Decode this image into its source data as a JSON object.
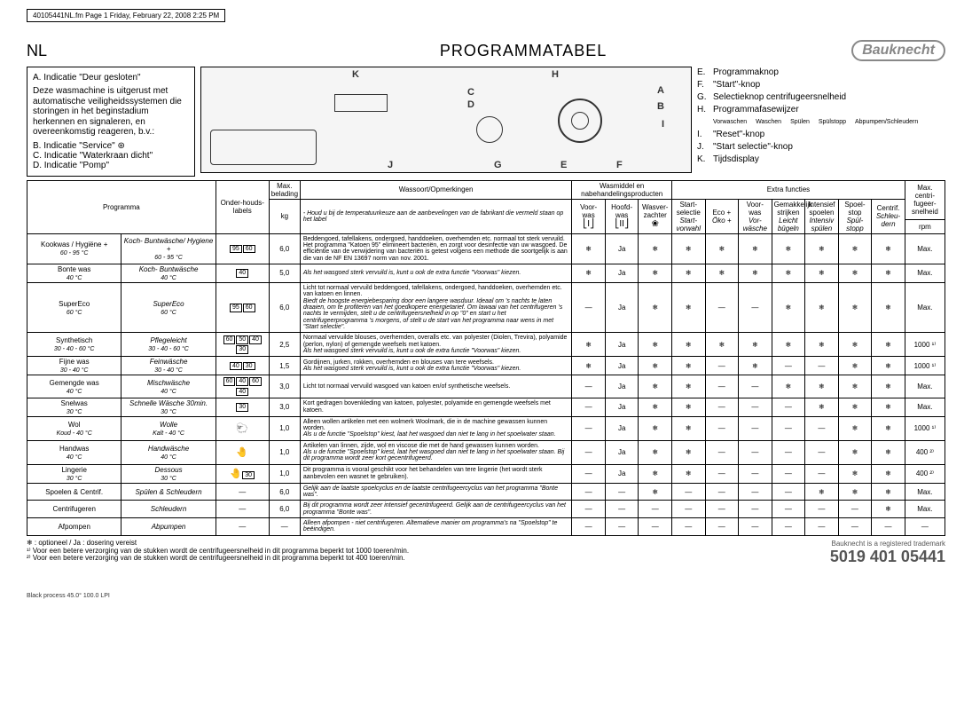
{
  "frame_header": "40105441NL.fm  Page 1  Friday, February 22, 2008  2:25 PM",
  "lang": "NL",
  "title": "PROGRAMMATABEL",
  "logo": "Bauknecht",
  "left": {
    "a": "A. Indicatie \"Deur gesloten\"",
    "block": "Deze wasmachine is uitgerust met automatische veiligheidssystemen die storingen in het beginstadium herkennen en signaleren, en overeenkomstig reageren, b.v.:",
    "b": "B. Indicatie \"Service\"",
    "c": "C. Indicatie \"Waterkraan dicht\"",
    "d": "D. Indicatie \"Pomp\""
  },
  "diagram": {
    "K": "K",
    "H": "H",
    "C": "C",
    "D": "D",
    "A": "A",
    "B": "B",
    "I": "I",
    "J": "J",
    "G": "G",
    "E": "E",
    "F": "F",
    "phases": [
      "Vorwaschen",
      "Waschen",
      "Spülen",
      "Spülstopp",
      "Abpumpen/Schleudern"
    ]
  },
  "legend": {
    "E": "Programmaknop",
    "F": "\"Start\"-knop",
    "G": "Selectieknop centrifugeersnelheid",
    "H": "Programmafasewijzer",
    "I": "\"Reset\"-knop",
    "J": "\"Start selectie\"-knop",
    "K": "Tijdsdisplay"
  },
  "theaders": {
    "programma": "Programma",
    "labels": "Onder-houds-labels",
    "max": "Max. belading",
    "kg": "kg",
    "wassoort": "Wassoort/Opmerkingen",
    "note": "- Houd u bij de temperatuurkeuze aan de aanbevelingen van de fabrikant die vermeld staan op het label",
    "wasmiddel": "Wasmiddel en nabehandelingsproducten",
    "voorwas": "Voor-was",
    "hoofdwas": "Hoofd-was",
    "wasverzachter": "Wasver-zachter",
    "extra": "Extra functies",
    "startsel": "Start-selectie",
    "startsel2": "Start-vorwahl",
    "eco": "Eco +",
    "eco2": "Öko +",
    "voorwas2": "Voor-was",
    "voorwas3": "Vor-wäsche",
    "strijk": "Gemakkelijk strijken",
    "strijk2": "Leicht bügeln",
    "spoel": "Intensief spoelen",
    "spoel2": "Intensiv spülen",
    "stop": "Spoel-stop",
    "stop2": "Spül-stopp",
    "centrif": "Centrif.",
    "centrif2": "Schleu-dern",
    "rpm_h1": "Max. centri-fugeer-snelheid",
    "rpm_h2": "rpm"
  },
  "rows": [
    {
      "p1": "Kookwas / Hygiëne +",
      "p1s": "60 - 95 °C",
      "p2": "Koch- Buntwäsche/ Hygiene +",
      "p2s": "60 - 95 °C",
      "care": [
        "95",
        "60"
      ],
      "kg": "6,0",
      "notes": "Beddengoed, tafellakens, ondergoed, handdoeken, overhemden etc. normaal tot sterk vervuild.\nHet programma \"Katoen 95\" elimineert bacteriën, en zorgt voor desinfectie van uw wasgoed. De efficiëntie van de verwijdering van bacteriën is getest volgens een methode die soortgelijk is aan die van de NF EN 13697 norm van nov. 2001.",
      "f": [
        "❄",
        "Ja",
        "❄",
        "❄",
        "❄",
        "❄",
        "❄",
        "❄",
        "❄",
        "❄"
      ],
      "rpm": "Max."
    },
    {
      "p1": "Bonte was",
      "p1s": "40 °C",
      "p2": "Koch- Buntwäsche",
      "p2s": "40 °C",
      "care": [
        "40"
      ],
      "kg": "5,0",
      "notes_it": "Als het wasgoed sterk vervuild is, kunt u ook de extra functie \"Voorwas\" kiezen.",
      "f": [
        "❄",
        "Ja",
        "❄",
        "❄",
        "❄",
        "❄",
        "❄",
        "❄",
        "❄",
        "❄"
      ],
      "rpm": "Max."
    },
    {
      "p1": "SuperEco",
      "p1s": "60 °C",
      "p2": "SuperEco",
      "p2s": "60 °C",
      "care": [
        "95",
        "60"
      ],
      "kg": "6,0",
      "notes": "Licht tot normaal vervuild beddengoed, tafellakens, ondergoed, handdoeken, overhemden etc. van katoen en linnen.",
      "notes_it": "Biedt de hoogste energiebesparing door een langere wasduur. Ideaal om 's nachts te laten draaien, om te profiteren van het goedkopere energietarief. Om lawaai van het centrifugeren 's nachts te vermijden, stelt u de centrifugeersnelheid in op \"0\" en start u het centrifugeerprogramma 's morgens, of stelt u de start van het programma naar wens in met \"Start selectie\".",
      "f": [
        "—",
        "Ja",
        "❄",
        "❄",
        "—",
        "—",
        "❄",
        "❄",
        "❄",
        "❄"
      ],
      "rpm": "Max."
    },
    {
      "p1": "Synthetisch",
      "p1s": "30 - 40 - 60 °C",
      "p2": "Pflegeleicht",
      "p2s": "30 - 40 - 60 °C",
      "care": [
        "60",
        "50",
        "40",
        "30"
      ],
      "kg": "2,5",
      "notes": "Normaal vervuilde blouses, overhemden, overalls etc. van polyester (Diolen, Trevira), polyamide (perlon, nylon) of gemengde weefsels met katoen.",
      "notes_it": "Als het wasgoed sterk vervuild is, kunt u ook de extra functie \"Voorwas\" kiezen.",
      "f": [
        "❄",
        "Ja",
        "❄",
        "❄",
        "❄",
        "❄",
        "❄",
        "❄",
        "❄",
        "❄"
      ],
      "rpm": "1000 ¹⁾"
    },
    {
      "p1": "Fijne was",
      "p1s": "30 - 40 °C",
      "p2": "Feinwäsche",
      "p2s": "30 - 40 °C",
      "care": [
        "40",
        "30"
      ],
      "kg": "1,5",
      "notes": "Gordijnen, jurken, rokken, overhemden en blouses van tere weefsels.",
      "notes_it": "Als het wasgoed sterk vervuild is, kunt u ook de extra functie \"Voorwas\" kiezen.",
      "f": [
        "❄",
        "Ja",
        "❄",
        "❄",
        "—",
        "❄",
        "—",
        "—",
        "❄",
        "❄"
      ],
      "rpm": "1000 ¹⁾"
    },
    {
      "p1": "Gemengde was",
      "p1s": "40 °C",
      "p2": "Mischwäsche",
      "p2s": "40 °C",
      "care": [
        "60",
        "40",
        "60",
        "40"
      ],
      "kg": "3,0",
      "notes": "Licht tot normaal vervuild wasgoed van katoen en/of synthetische weefsels.",
      "f": [
        "—",
        "Ja",
        "❄",
        "❄",
        "—",
        "—",
        "❄",
        "❄",
        "❄",
        "❄"
      ],
      "rpm": "Max."
    },
    {
      "p1": "Snelwas",
      "p1s": "30 °C",
      "p2": "Schnelle Wäsche 30min.",
      "p2s": "30 °C",
      "care": [
        "30"
      ],
      "kg": "3,0",
      "notes": "Kort gedragen bovenkleding van katoen, polyester, polyamide en gemengde weefsels met katoen.",
      "f": [
        "—",
        "Ja",
        "❄",
        "❄",
        "—",
        "—",
        "—",
        "❄",
        "❄",
        "❄"
      ],
      "rpm": "Max."
    },
    {
      "p1": "Wol",
      "p1s": "Koud - 40 °C",
      "p2": "Wolle",
      "p2s": "Kalt - 40 °C",
      "care": [
        "wool"
      ],
      "kg": "1,0",
      "notes": "Alleen wollen artikelen met een wolmerk Woolmark, die in de machine gewassen kunnen worden.",
      "notes_it": "Als u de functie \"Spoelstop\" kiest, laat het wasgoed dan niet te lang in het spoelwater staan.",
      "f": [
        "—",
        "Ja",
        "❄",
        "❄",
        "—",
        "—",
        "—",
        "—",
        "❄",
        "❄"
      ],
      "rpm": "1000 ¹⁾"
    },
    {
      "p1": "Handwas",
      "p1s": "40 °C",
      "p2": "Handwäsche",
      "p2s": "40 °C",
      "care": [
        "hand"
      ],
      "kg": "1,0",
      "notes": "Artikelen van linnen, zijde, wol en viscose die met de hand gewassen kunnen worden.",
      "notes_it": "Als u de functie \"Spoelstop\" kiest, laat het wasgoed dan niet te lang in het spoelwater staan. Bij dit programma wordt zeer kort gecentrifugeerd.",
      "f": [
        "—",
        "Ja",
        "❄",
        "❄",
        "—",
        "—",
        "—",
        "—",
        "❄",
        "❄"
      ],
      "rpm": "400 ²⁾"
    },
    {
      "p1": "Lingerie",
      "p1s": "30 °C",
      "p2": "Dessous",
      "p2s": "30 °C",
      "care": [
        "hand",
        "30"
      ],
      "kg": "1,0",
      "notes": "Dit programma is vooral geschikt voor het behandelen van tere lingerie (het wordt sterk aanbevolen een wasnet te gebruiken).",
      "f": [
        "—",
        "Ja",
        "❄",
        "❄",
        "—",
        "—",
        "—",
        "—",
        "❄",
        "❄"
      ],
      "rpm": "400 ²⁾"
    },
    {
      "p1": "Spoelen & Centrif.",
      "p1s": "",
      "p2": "Spülen & Schleudern",
      "p2s": "",
      "care": [],
      "dash_care": true,
      "kg": "6,0",
      "notes_it": "Gelijk aan de laatste spoelcyclus en de laatste centrifugeercyclus van het programma \"Bonte was\".",
      "f": [
        "—",
        "—",
        "❄",
        "—",
        "—",
        "—",
        "—",
        "❄",
        "❄",
        "❄"
      ],
      "rpm": "Max."
    },
    {
      "p1": "Centrifugeren",
      "p1s": "",
      "p2": "Schleudern",
      "p2s": "",
      "care": [],
      "dash_care": true,
      "kg": "6,0",
      "notes_it": "Bij dit programma wordt zeer intensief gecentrifugeerd. Gelijk aan de centrifugeercyclus van het programma \"Bonte was\".",
      "f": [
        "—",
        "—",
        "—",
        "—",
        "—",
        "—",
        "—",
        "—",
        "—",
        "❄"
      ],
      "rpm": "Max."
    },
    {
      "p1": "Afpompen",
      "p1s": "",
      "p2": "Abpumpen",
      "p2s": "",
      "care": [],
      "dash_care": true,
      "kg": "—",
      "notes_it": "Alleen afpompen - niet centrifugeren. Alternatieve manier om programma's na \"Spoelstop\" te beëindigen.",
      "f": [
        "—",
        "—",
        "—",
        "—",
        "—",
        "—",
        "—",
        "—",
        "—",
        "—"
      ],
      "rpm": "—"
    }
  ],
  "footnotes": {
    "sym": "❄ : optioneel / Ja : dosering vereist",
    "n1": "¹⁾ Voor een betere verzorging van de stukken wordt de centrifugeersnelheid in dit programma beperkt tot 1000 toeren/min.",
    "n2": "²⁾ Voor een betere verzorging van de stukken wordt de centrifugeersnelheid in dit programma beperkt tot 400 toeren/min."
  },
  "trademark": "Bauknecht is a registered trademark",
  "partno": "5019 401 05441",
  "bottom": "Black process 45.0° 100.0 LPI"
}
